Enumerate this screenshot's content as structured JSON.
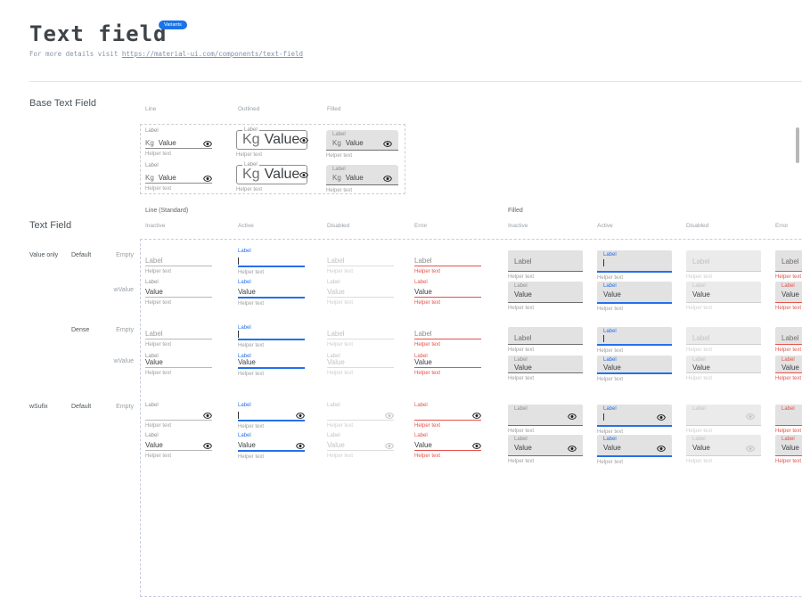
{
  "header": {
    "title": "Text field",
    "badge": "Variants",
    "subtitle_prefix": "For more details visit ",
    "subtitle_link": "https://material-ui.com/components/text-field"
  },
  "base_section": {
    "title": "Base Text Field",
    "columns": [
      "Line",
      "Outlined",
      "Filled"
    ],
    "field": {
      "label": "Label",
      "prefix": "Kg",
      "value": "Value",
      "helper": "Helper text"
    }
  },
  "grid_section": {
    "title": "Text Field",
    "groups": [
      "Line (Standard)",
      "Filled"
    ],
    "states": [
      "Inactive",
      "Active",
      "Disabled",
      "Error"
    ],
    "row_labels": {
      "value_only": "Value only",
      "wsufix": "wSufix",
      "default": "Default",
      "dense": "Dense",
      "empty": "Empty",
      "wvalue": "wValue"
    },
    "field": {
      "label": "Label",
      "value": "Value",
      "helper": "Helper text"
    }
  },
  "colors": {
    "badge_blue": "#1a73e8",
    "accent_blue": "#2570eb",
    "error_red": "#e5534b",
    "filled_gray": "#e2e2e2"
  }
}
